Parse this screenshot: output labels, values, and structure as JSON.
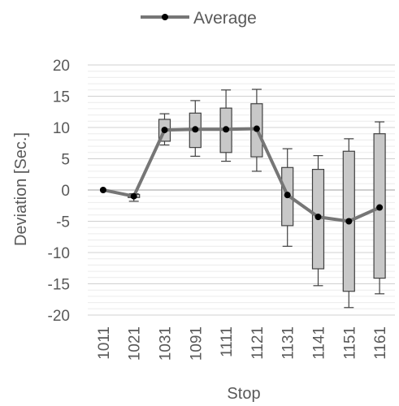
{
  "chart_data": {
    "type": "box",
    "xlabel": "Stop",
    "ylabel": "Deviation [Sec.]",
    "ylim": [
      -20,
      20
    ],
    "y_ticks": [
      20,
      15,
      10,
      5,
      0,
      -5,
      -10,
      -15,
      -20
    ],
    "grid": "horizontal minor and major gridlines",
    "legend": {
      "position": "top",
      "entries": [
        "Average"
      ]
    },
    "categories": [
      "1011",
      "1021",
      "1031",
      "1091",
      "1111",
      "1121",
      "1131",
      "1141",
      "1151",
      "1161"
    ],
    "series": [
      {
        "name": "Average",
        "type": "line",
        "values": [
          0,
          -1,
          9.6,
          9.7,
          9.7,
          9.8,
          -0.8,
          -4.3,
          -5.0,
          -2.8
        ]
      }
    ],
    "boxes": [
      {
        "category": "1011",
        "min": 0,
        "q1": 0,
        "median": 0,
        "q3": 0,
        "max": 0
      },
      {
        "category": "1021",
        "min": -1.8,
        "q1": -1.2,
        "median": -1.0,
        "q3": -0.7,
        "max": -0.6
      },
      {
        "category": "1031",
        "min": 7.2,
        "q1": 7.8,
        "median": 9.6,
        "q3": 11.3,
        "max": 12.2
      },
      {
        "category": "1091",
        "min": 5.4,
        "q1": 6.8,
        "median": 9.6,
        "q3": 12.3,
        "max": 14.3
      },
      {
        "category": "1111",
        "min": 4.6,
        "q1": 6.0,
        "median": 9.6,
        "q3": 13.1,
        "max": 16.0
      },
      {
        "category": "1121",
        "min": 3.0,
        "q1": 5.3,
        "median": 9.7,
        "q3": 13.8,
        "max": 16.1
      },
      {
        "category": "1131",
        "min": -9.0,
        "q1": -5.7,
        "median": -0.8,
        "q3": 3.6,
        "max": 6.6
      },
      {
        "category": "1141",
        "min": -15.3,
        "q1": -12.6,
        "median": -4.3,
        "q3": 3.3,
        "max": 5.5
      },
      {
        "category": "1151",
        "min": -18.8,
        "q1": -16.2,
        "median": -5.0,
        "q3": 6.2,
        "max": 8.2
      },
      {
        "category": "1161",
        "min": -16.6,
        "q1": -14.1,
        "median": -2.8,
        "q3": 9.0,
        "max": 10.9
      }
    ],
    "colors": {
      "line": "#767676",
      "box_fill": "#c8c8c8",
      "box_stroke": "#404040",
      "marker": "#000000",
      "grid": "#d9d9d9",
      "text": "#595959"
    }
  }
}
